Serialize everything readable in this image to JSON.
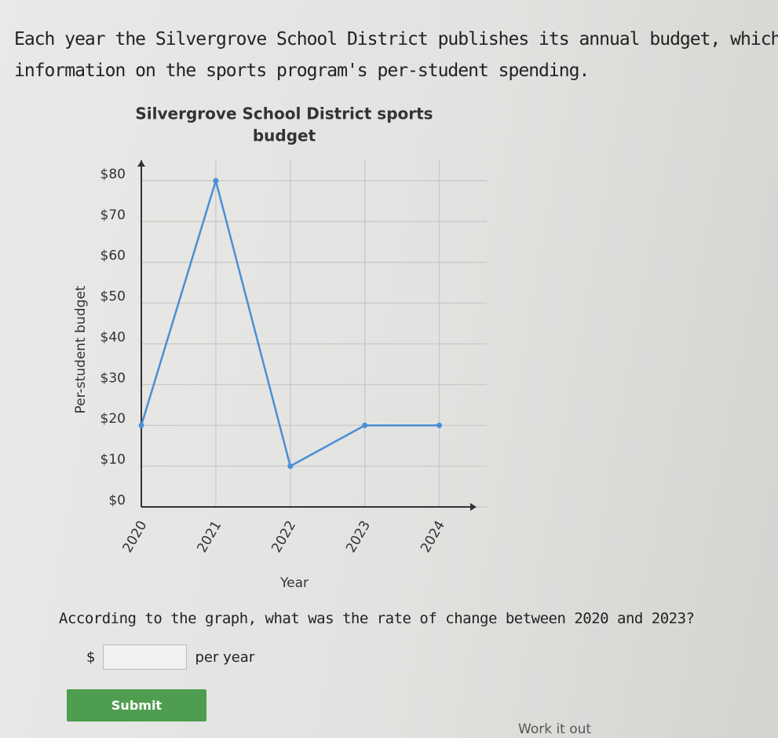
{
  "intro": [
    "Each year the Silvergrove School District publishes its annual budget, which i",
    "information on the sports program's per-student spending."
  ],
  "chart_data": {
    "type": "line",
    "title": [
      "Silvergrove School District sports",
      "budget"
    ],
    "x_label": "Year",
    "y_label": "Per-student budget",
    "x": [
      2020,
      2021,
      2022,
      2023,
      2024
    ],
    "series": [
      {
        "name": "Per-student budget",
        "color": "#4a8fd6",
        "values": [
          20,
          80,
          10,
          20,
          20
        ]
      }
    ],
    "xlim": [
      2020,
      2024.5
    ],
    "xticks": [
      2020,
      2021,
      2022,
      2023,
      2024
    ],
    "ylim": [
      0,
      85
    ],
    "yticks": [
      {
        "value": 0,
        "label": "$0"
      },
      {
        "value": 10,
        "label": "$10"
      },
      {
        "value": 20,
        "label": "$20"
      },
      {
        "value": 30,
        "label": "$30"
      },
      {
        "value": 40,
        "label": "$40"
      },
      {
        "value": 50,
        "label": "$50"
      },
      {
        "value": 60,
        "label": "$60"
      },
      {
        "value": 70,
        "label": "$70"
      },
      {
        "value": 80,
        "label": "$80"
      }
    ],
    "grid": true
  },
  "question": "According to the graph, what was the rate of change between 2020 and 2023?",
  "answer": {
    "prefix": "$",
    "suffix": "per year"
  },
  "submit": "Submit",
  "work_it_out": "Work it out"
}
